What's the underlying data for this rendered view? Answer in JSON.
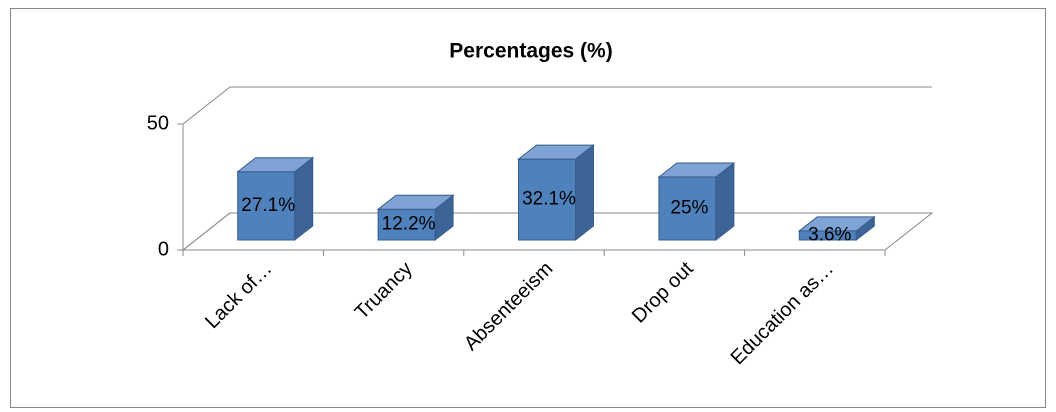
{
  "chart_data": {
    "type": "bar3d",
    "title": "Percentages (%)",
    "categories": [
      "Lack of…",
      "Truancy",
      "Absenteeism",
      "Drop out",
      "Education as…"
    ],
    "values": [
      27.1,
      12.2,
      32.1,
      25,
      3.6
    ],
    "value_labels": [
      "27.1%",
      "12.2%",
      "32.1%",
      "25%",
      "3.6%"
    ],
    "color": "#4f81bd",
    "ylim": [
      0,
      50
    ],
    "yticks": [
      0,
      50
    ],
    "grid": true
  }
}
